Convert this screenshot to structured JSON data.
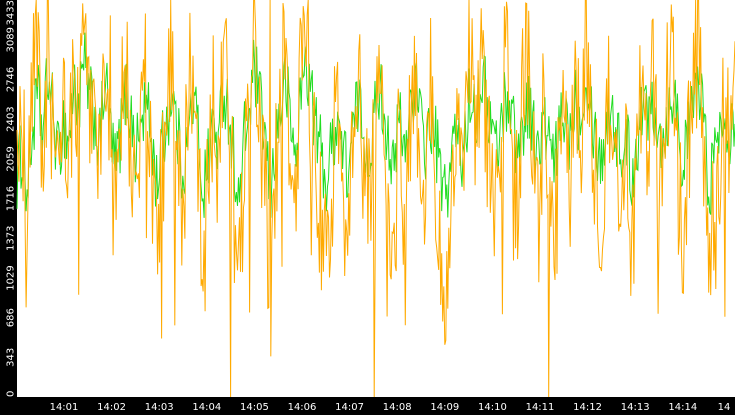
{
  "chart_data": {
    "type": "line",
    "title": "",
    "xlabel": "",
    "ylabel": "",
    "y_ticks": [
      0,
      343,
      686,
      1029,
      1373,
      1716,
      2059,
      2403,
      2746,
      3089,
      3433
    ],
    "ylim": [
      0,
      3433
    ],
    "x_ticks": [
      "14:01",
      "14:02",
      "14:03",
      "14:04",
      "14:05",
      "14:06",
      "14:07",
      "14:08",
      "14:09",
      "14:10",
      "14:11",
      "14:12",
      "14:13",
      "14:14",
      "14"
    ],
    "grid": false,
    "legend": "none",
    "colors": {
      "background": "#ffffff",
      "axis_background": "#000000",
      "tick_text": "#ffffff",
      "series_green": "#22dd22",
      "series_orange": "#ffaa00"
    },
    "series": [
      {
        "color": "#22dd22",
        "y": [
          1900,
          2150,
          1750,
          2300,
          2600,
          2250,
          2800,
          2450,
          2050,
          2380,
          2200,
          2680,
          2500,
          2880,
          2600,
          2420,
          2150,
          2780,
          2350,
          1980,
          2250,
          2640,
          2460,
          2100,
          2360,
          2550,
          2250,
          1850,
          2130,
          2400,
          2650,
          2300,
          1960,
          2180,
          2580,
          2350,
          1760,
          2050,
          2400,
          2170,
          2720,
          2450,
          2100,
          1620,
          2230,
          2480,
          2850,
          2520,
          2260,
          1700,
          2180,
          2480,
          2740,
          2350,
          2050,
          2650,
          2920,
          2600,
          2300,
          2100,
          1830,
          2190,
          2460,
          2150,
          1950,
          2240,
          2560,
          2340,
          2080,
          2310,
          2720,
          2480,
          2230,
          1880,
          2460,
          2050,
          2500,
          2750,
          2400,
          2150,
          2380,
          2240,
          1900,
          1700,
          2060,
          2320,
          2000,
          2380,
          2660,
          2450,
          2820,
          2530,
          2310,
          2140,
          2450,
          2640,
          2400,
          2110,
          2360,
          2580,
          2300,
          2060,
          2390,
          2180,
          1980,
          2270,
          2490,
          2250,
          2620,
          2350,
          2850,
          2580,
          2240,
          2030,
          2300,
          2560,
          2300,
          2050,
          2250,
          1890,
          2200,
          2520,
          2450,
          2650,
          2380,
          2200,
          2440,
          2690,
          2400,
          1960,
          2280,
          2560,
          2720,
          2350,
          1800,
          2110,
          2260,
          2520,
          2300,
          2500
        ]
      },
      {
        "color": "#ffaa00",
        "y": [
          1800,
          2400,
          1400,
          2600,
          3000,
          2000,
          3100,
          2200,
          1700,
          2600,
          1900,
          2900,
          2300,
          3100,
          2400,
          2700,
          1800,
          3200,
          2100,
          1500,
          2500,
          3000,
          2200,
          1600,
          2700,
          2900,
          1900,
          1200,
          1800,
          2700,
          3000,
          2000,
          1500,
          2500,
          2900,
          2100,
          1100,
          1700,
          2700,
          1900,
          3100,
          2200,
          1600,
          900,
          2000,
          2800,
          3300,
          2200,
          1900,
          700,
          1800,
          2800,
          3000,
          2000,
          1500,
          2900,
          3300,
          2300,
          1800,
          1500,
          1100,
          1800,
          2800,
          1900,
          1400,
          2000,
          2900,
          2100,
          1600,
          2000,
          3100,
          2200,
          1800,
          900,
          2800,
          1500,
          2200,
          3100,
          2000,
          1800,
          2700,
          1900,
          1400,
          800,
          1600,
          2600,
          1700,
          2700,
          3000,
          2100,
          3100,
          2300,
          1900,
          1600,
          2700,
          2900,
          2100,
          1600,
          2700,
          2900,
          1900,
          1500,
          2600,
          1800,
          1500,
          2000,
          2800,
          2000,
          2900,
          2100,
          3200,
          2300,
          1900,
          1500,
          2000,
          2900,
          2000,
          1400,
          2100,
          1200,
          1800,
          2800,
          2100,
          3000,
          2000,
          1800,
          2700,
          3000,
          2000,
          1300,
          2100,
          2800,
          3100,
          2000,
          900,
          1700,
          2000,
          2800,
          1900,
          2700
        ]
      }
    ],
    "dips": [
      {
        "x": 0.2975,
        "y": 0
      },
      {
        "x": 0.3525,
        "y": 0
      },
      {
        "x": 0.4975,
        "y": 0
      },
      {
        "x": 0.7405,
        "y": 0
      }
    ],
    "peaks": [
      {
        "x": 0.3525,
        "y": 3433
      },
      {
        "x": 0.13,
        "y": 3300
      },
      {
        "x": 0.023,
        "y": 3320
      }
    ]
  }
}
